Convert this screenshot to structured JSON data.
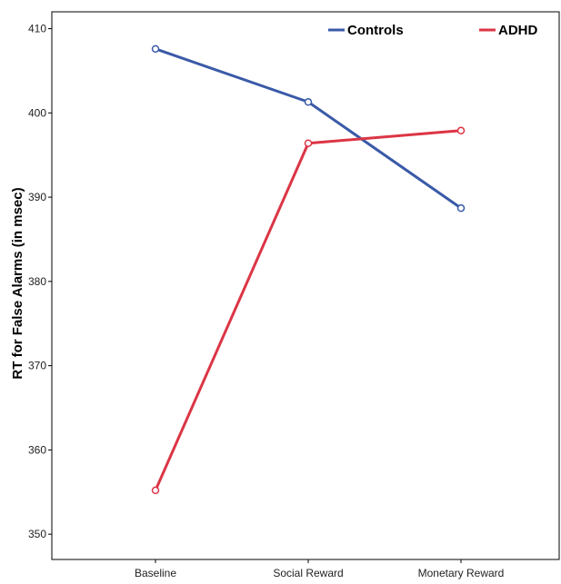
{
  "chart_data": {
    "type": "line",
    "title": "",
    "xlabel": "",
    "ylabel": "RT for False Alarms (in msec)",
    "categories": [
      "Baseline",
      "Social Reward",
      "Monetary Reward"
    ],
    "ylim": [
      347,
      412
    ],
    "yticks": [
      350,
      360,
      370,
      380,
      390,
      400,
      410
    ],
    "grid": false,
    "legend_position": "top-right",
    "series": [
      {
        "name": "Controls",
        "values": [
          407.6,
          401.3,
          388.7
        ],
        "color": "#3a5aa8"
      },
      {
        "name": "ADHD",
        "values": [
          355.2,
          396.4,
          397.9
        ],
        "color": "#dc3545"
      }
    ]
  }
}
